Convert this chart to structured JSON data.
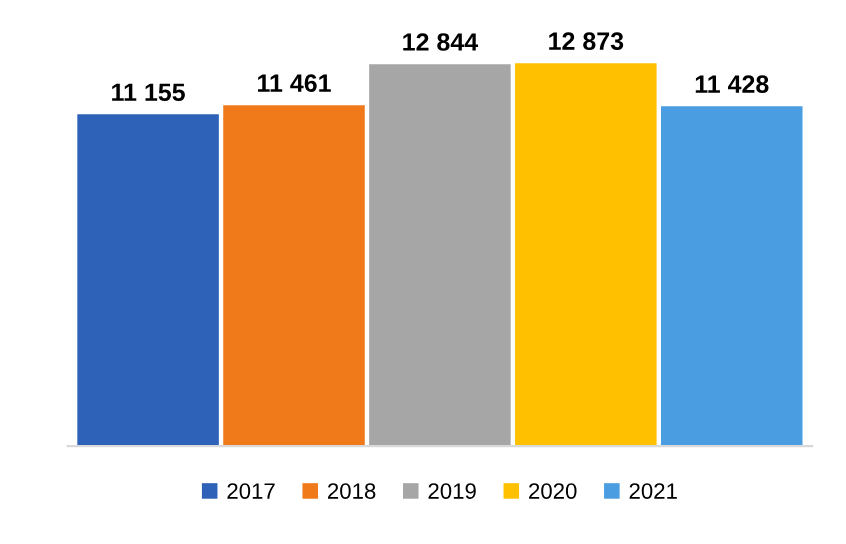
{
  "chart_data": {
    "type": "bar",
    "categories": [
      null
    ],
    "series": [
      {
        "name": "2017",
        "color": "#2e62b8",
        "values": [
          11155
        ],
        "value_labels": [
          "11 155"
        ]
      },
      {
        "name": "2018",
        "color": "#f07a1a",
        "values": [
          11461
        ],
        "value_labels": [
          "11 461"
        ]
      },
      {
        "name": "2019",
        "color": "#a6a6a6",
        "values": [
          12844
        ],
        "value_labels": [
          "12 844"
        ]
      },
      {
        "name": "2020",
        "color": "#ffc000",
        "values": [
          12873
        ],
        "value_labels": [
          "12 873"
        ]
      },
      {
        "name": "2021",
        "color": "#4a9de0",
        "values": [
          11428
        ],
        "value_labels": [
          "11 428"
        ]
      }
    ],
    "tick_labels": false,
    "legend": "bottom",
    "grid": false
  }
}
